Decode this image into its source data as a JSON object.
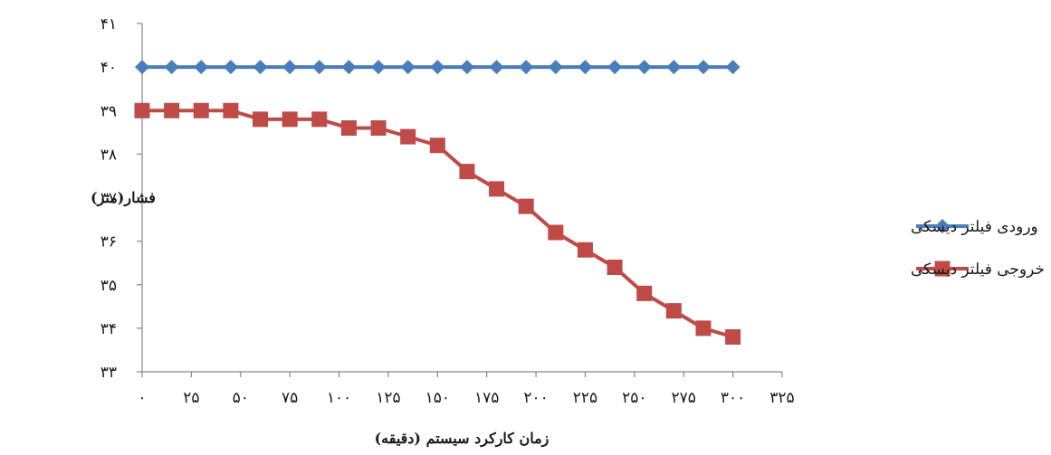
{
  "chart_data": {
    "type": "line",
    "xlabel": "زمان کارکرد سیستم (دقیقه)",
    "ylabel": "فشار(متر)",
    "xlim": [
      0,
      325
    ],
    "ylim": [
      33,
      41
    ],
    "x_ticks": [
      0,
      25,
      50,
      75,
      100,
      125,
      150,
      175,
      200,
      225,
      250,
      275,
      300,
      325
    ],
    "x_tick_labels": [
      "۰",
      "۲۵",
      "۵۰",
      "۷۵",
      "۱۰۰",
      "۱۲۵",
      "۱۵۰",
      "۱۷۵",
      "۲۰۰",
      "۲۲۵",
      "۲۵۰",
      "۲۷۵",
      "۳۰۰",
      "۳۲۵"
    ],
    "y_ticks": [
      33,
      34,
      35,
      36,
      37,
      38,
      39,
      40,
      41
    ],
    "y_tick_labels": [
      "۳۳",
      "۳۴",
      "۳۵",
      "۳۶",
      "۳۷",
      "۳۸",
      "۳۹",
      "۴۰",
      "۴۱"
    ],
    "grid": false,
    "legend_position": "right",
    "x": [
      0,
      15,
      30,
      45,
      60,
      75,
      90,
      105,
      120,
      135,
      150,
      165,
      180,
      195,
      210,
      225,
      240,
      255,
      270,
      285,
      300
    ],
    "series": [
      {
        "name": "ورودی فیلتر دیسکی",
        "color": "#4a7ebb",
        "marker": "diamond",
        "values": [
          40,
          40,
          40,
          40,
          40,
          40,
          40,
          40,
          40,
          40,
          40,
          40,
          40,
          40,
          40,
          40,
          40,
          40,
          40,
          40,
          40
        ]
      },
      {
        "name": "خروجی فیلتر دیسکی",
        "color": "#be4b48",
        "marker": "square",
        "values": [
          39,
          39,
          39,
          39,
          38.8,
          38.8,
          38.8,
          38.6,
          38.6,
          38.4,
          38.2,
          37.6,
          37.2,
          36.8,
          36.2,
          35.8,
          35.4,
          34.8,
          34.4,
          34.0,
          33.8
        ]
      }
    ]
  }
}
